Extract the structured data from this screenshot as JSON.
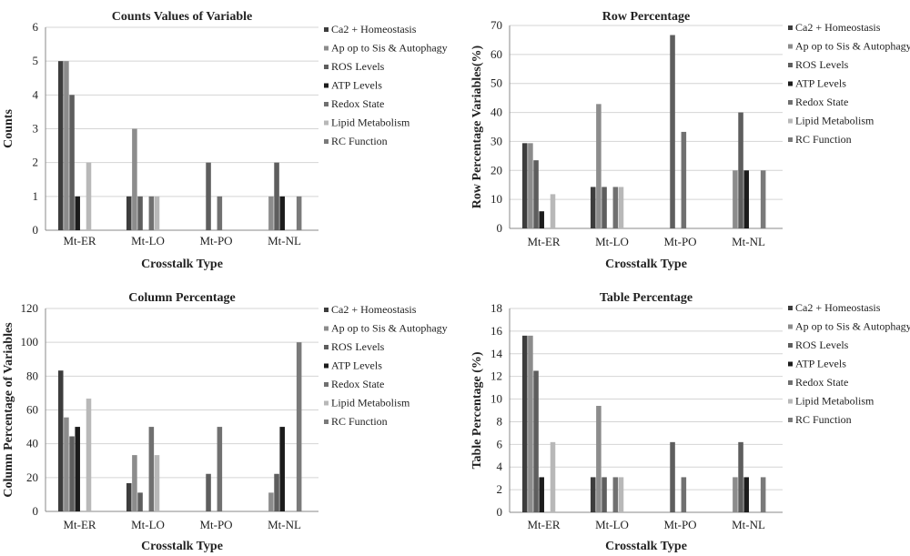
{
  "legend_colors": [
    "#3d3d3d",
    "#8c8c8c",
    "#5e5e5e",
    "#1c1c1c",
    "#707070",
    "#b8b8b8",
    "#7a7a7a"
  ],
  "chart_data": [
    {
      "type": "bar",
      "title": "Counts Values of Variable",
      "xlabel": "Crosstalk Type",
      "ylabel": "Counts",
      "ylim": [
        0,
        6
      ],
      "yticks": [
        0,
        1,
        2,
        3,
        4,
        5,
        6
      ],
      "legend_position": "right",
      "grid": true,
      "categories": [
        "Mt-ER",
        "Mt-LO",
        "Mt-PO",
        "Mt-NL"
      ],
      "series": [
        {
          "name": "Ca2 + Homeostasis",
          "values": [
            5,
            1,
            0,
            0
          ]
        },
        {
          "name": "Ap op to Sis & Autophagy",
          "values": [
            5,
            3,
            0,
            1
          ]
        },
        {
          "name": "ROS Levels",
          "values": [
            4,
            1,
            2,
            2
          ]
        },
        {
          "name": "ATP Levels",
          "values": [
            1,
            0,
            0,
            1
          ]
        },
        {
          "name": "Redox State",
          "values": [
            0,
            1,
            1,
            0
          ]
        },
        {
          "name": "Lipid Metabolism",
          "values": [
            2,
            1,
            0,
            0
          ]
        },
        {
          "name": "RC Function",
          "values": [
            0,
            0,
            0,
            1
          ]
        }
      ]
    },
    {
      "type": "bar",
      "title": "Row Percentage",
      "xlabel": "Crosstalk Type",
      "ylabel": "Row Percentage Variables(%)",
      "ylim": [
        0,
        70
      ],
      "yticks": [
        0,
        10,
        20,
        30,
        40,
        50,
        60,
        70
      ],
      "legend_position": "right",
      "grid": true,
      "categories": [
        "Mt-ER",
        "Mt-LO",
        "Mt-PO",
        "Mt-NL"
      ],
      "series": [
        {
          "name": "Ca2 + Homeostasis",
          "values": [
            29.4,
            14.3,
            0,
            0
          ]
        },
        {
          "name": "Ap op to Sis & Autophagy",
          "values": [
            29.4,
            42.9,
            0,
            20
          ]
        },
        {
          "name": "ROS Levels",
          "values": [
            23.5,
            14.3,
            66.7,
            40
          ]
        },
        {
          "name": "ATP Levels",
          "values": [
            5.9,
            0,
            0,
            20
          ]
        },
        {
          "name": "Redox State",
          "values": [
            0,
            14.3,
            33.3,
            0
          ]
        },
        {
          "name": "Lipid Metabolism",
          "values": [
            11.8,
            14.3,
            0,
            0
          ]
        },
        {
          "name": "RC Function",
          "values": [
            0,
            0,
            0,
            20
          ]
        }
      ]
    },
    {
      "type": "bar",
      "title": "Column Percentage",
      "xlabel": "Crosstalk Type",
      "ylabel": "Column Percentage of Variables",
      "ylim": [
        0,
        120
      ],
      "yticks": [
        0,
        20,
        40,
        60,
        80,
        100,
        120
      ],
      "legend_position": "right",
      "grid": true,
      "categories": [
        "Mt-ER",
        "Mt-LO",
        "Mt-PO",
        "Mt-NL"
      ],
      "series": [
        {
          "name": "Ca2 + Homeostasis",
          "values": [
            83.3,
            16.7,
            0,
            0
          ]
        },
        {
          "name": "Ap op to Sis & Autophagy",
          "values": [
            55.6,
            33.3,
            0,
            11.1
          ]
        },
        {
          "name": "ROS Levels",
          "values": [
            44.4,
            11.1,
            22.2,
            22.2
          ]
        },
        {
          "name": "ATP Levels",
          "values": [
            50,
            0,
            0,
            50
          ]
        },
        {
          "name": "Redox State",
          "values": [
            0,
            50,
            50,
            0
          ]
        },
        {
          "name": "Lipid Metabolism",
          "values": [
            66.7,
            33.3,
            0,
            0
          ]
        },
        {
          "name": "RC Function",
          "values": [
            0,
            0,
            0,
            100
          ]
        }
      ]
    },
    {
      "type": "bar",
      "title": "Table Percentage",
      "xlabel": "Crosstalk Type",
      "ylabel": "Table Percentage (%)",
      "ylim": [
        0,
        18
      ],
      "yticks": [
        0,
        2,
        4,
        6,
        8,
        10,
        12,
        14,
        16,
        18
      ],
      "legend_position": "right",
      "grid": true,
      "categories": [
        "Mt-ER",
        "Mt-LO",
        "Mt-PO",
        "Mt-NL"
      ],
      "series": [
        {
          "name": "Ca2 + Homeostasis",
          "values": [
            15.6,
            3.1,
            0,
            0
          ]
        },
        {
          "name": "Ap op to Sis & Autophagy",
          "values": [
            15.6,
            9.4,
            0,
            3.1
          ]
        },
        {
          "name": "ROS Levels",
          "values": [
            12.5,
            3.1,
            6.2,
            6.2
          ]
        },
        {
          "name": "ATP Levels",
          "values": [
            3.1,
            0,
            0,
            3.1
          ]
        },
        {
          "name": "Redox State",
          "values": [
            0,
            3.1,
            3.1,
            0
          ]
        },
        {
          "name": "Lipid Metabolism",
          "values": [
            6.2,
            3.1,
            0,
            0
          ]
        },
        {
          "name": "RC Function",
          "values": [
            0,
            0,
            0,
            3.1
          ]
        }
      ]
    }
  ]
}
